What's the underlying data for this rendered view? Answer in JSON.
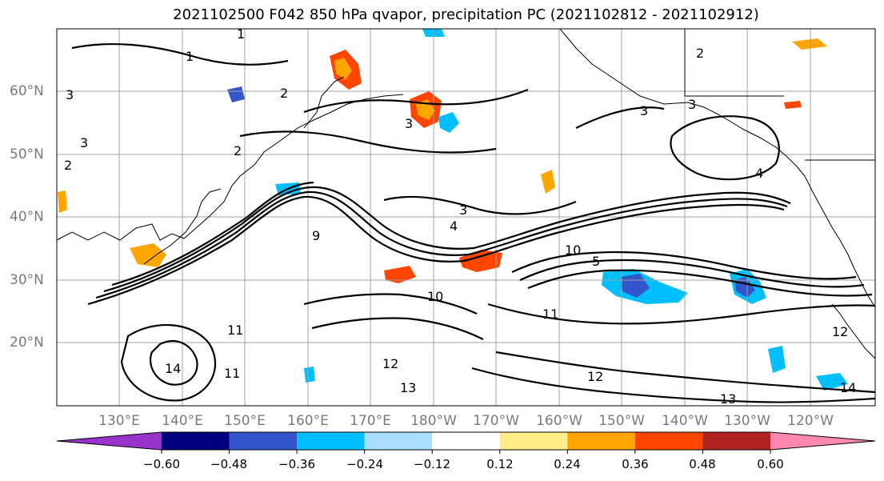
{
  "title": "2021102500 F042 850 hPa qvapor, precipitation PC (2021102812 - 2021102912)",
  "lat_labels": [
    "60°N",
    "50°N",
    "40°N",
    "30°N",
    "20°N"
  ],
  "lon_labels": [
    "130°E",
    "140°E",
    "150°E",
    "160°E",
    "170°E",
    "180°W",
    "170°W",
    "160°W",
    "150°W",
    "140°W",
    "130°W",
    "120°W"
  ],
  "colorbar": {
    "colors": [
      "#9933cc",
      "#000080",
      "#3355cc",
      "#00bfff",
      "#aadfff",
      "#ffffff",
      "#ffee88",
      "#ffa500",
      "#ff4500",
      "#b22222",
      "#ff88b0"
    ],
    "tick_labels": [
      "−0.60",
      "−0.48",
      "−0.36",
      "−0.24",
      "−0.12",
      "0.12",
      "0.24",
      "0.36",
      "0.48",
      "0.60"
    ]
  },
  "contour_labels": [
    "1",
    "1",
    "2",
    "2",
    "2",
    "2",
    "3",
    "3",
    "3",
    "3",
    "3",
    "3",
    "4",
    "4",
    "5",
    "9",
    "10",
    "10",
    "11",
    "11",
    "11",
    "12",
    "12",
    "12",
    "13",
    "13",
    "14",
    "14"
  ],
  "colors": {
    "text_gray": "#7a7a7a",
    "grid": "#a0a0a0",
    "contour": "#000000",
    "coast": "#000000"
  }
}
